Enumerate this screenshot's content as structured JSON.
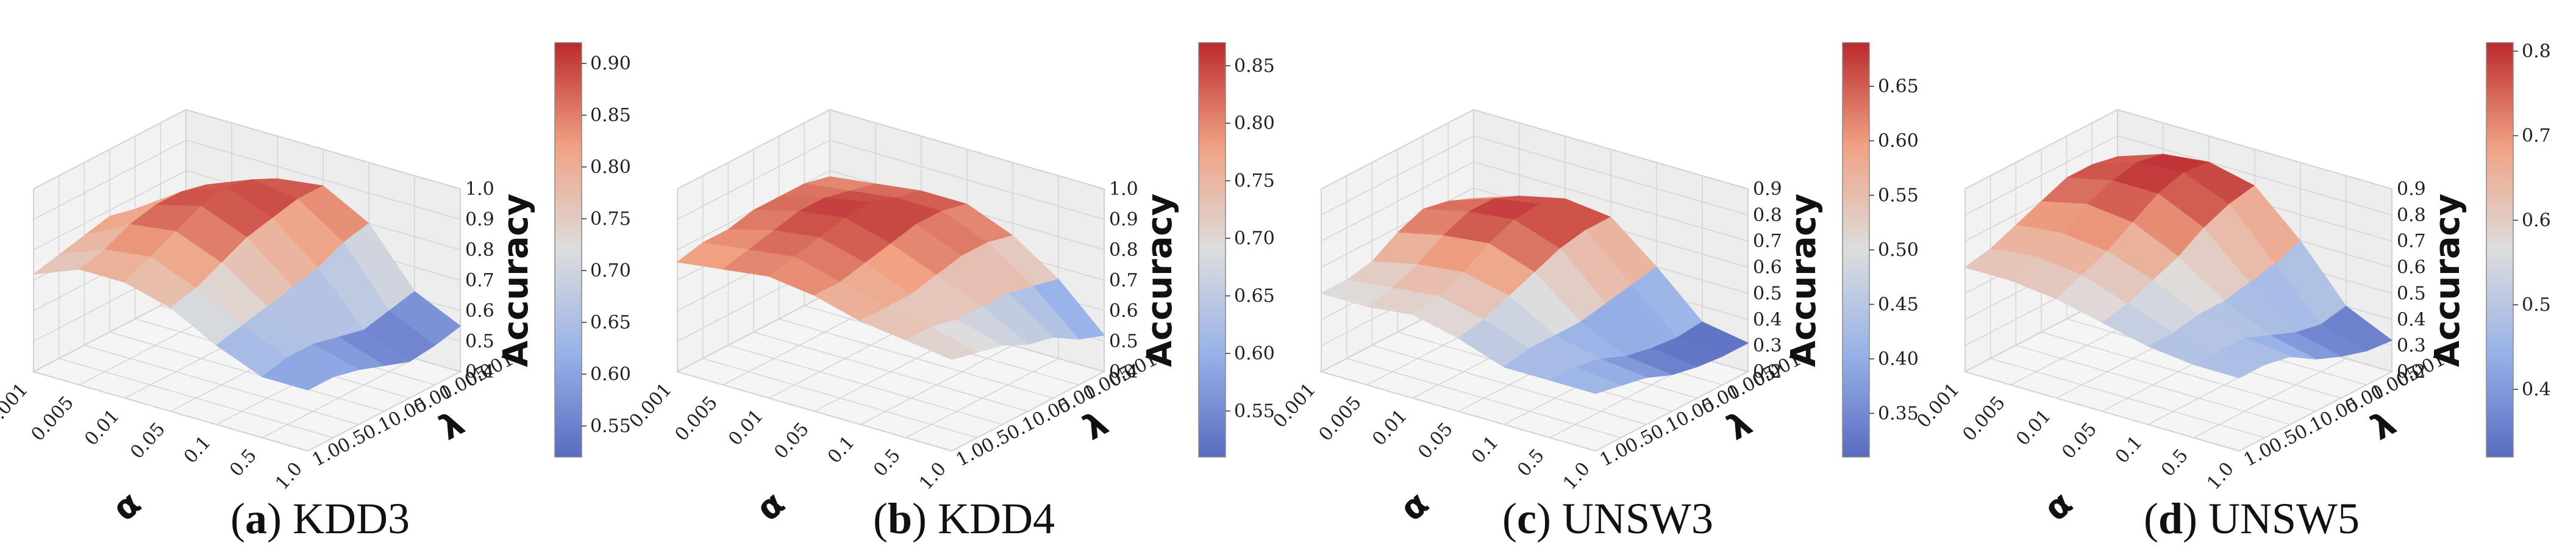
{
  "colormap": {
    "name": "coolwarm",
    "low": "#5a6bc0",
    "mid": "#dddddd",
    "high": "#bb2a2e"
  },
  "chart_data": [
    {
      "type": "surface3d",
      "caption_letter": "a",
      "caption_name": "KDD3",
      "xlabel": "α",
      "ylabel": "λ",
      "zlabel": "Accuracy",
      "x_ticks": [
        "0.001",
        "0.005",
        "0.01",
        "0.05",
        "0.1",
        "0.5",
        "1.0"
      ],
      "y_ticks": [
        "1.0",
        "0.5",
        "0.1",
        "0.05",
        "0.01",
        "0.005",
        "0.001"
      ],
      "z_ticks": [
        "0.4",
        "0.5",
        "0.6",
        "0.7",
        "0.8",
        "0.9",
        "1.0"
      ],
      "zlim": [
        0.4,
        1.0
      ],
      "colorbar_ticks": [
        "0.55",
        "0.60",
        "0.65",
        "0.70",
        "0.75",
        "0.80",
        "0.85",
        "0.90"
      ],
      "clim": [
        0.52,
        0.92
      ],
      "z": [
        [
          0.72,
          0.8,
          0.86,
          0.88,
          0.8,
          0.62,
          0.55
        ],
        [
          0.74,
          0.84,
          0.9,
          0.88,
          0.78,
          0.6,
          0.53
        ],
        [
          0.76,
          0.86,
          0.92,
          0.86,
          0.74,
          0.58,
          0.52
        ],
        [
          0.78,
          0.86,
          0.9,
          0.84,
          0.72,
          0.6,
          0.55
        ],
        [
          0.76,
          0.84,
          0.86,
          0.8,
          0.7,
          0.62,
          0.58
        ],
        [
          0.74,
          0.8,
          0.82,
          0.76,
          0.68,
          0.62,
          0.6
        ],
        [
          0.72,
          0.78,
          0.78,
          0.74,
          0.66,
          0.6,
          0.6
        ]
      ]
    },
    {
      "type": "surface3d",
      "caption_letter": "b",
      "caption_name": "KDD4",
      "xlabel": "α",
      "ylabel": "λ",
      "zlabel": "Accuracy",
      "x_ticks": [
        "0.001",
        "0.005",
        "0.01",
        "0.05",
        "0.1",
        "0.5",
        "1.0"
      ],
      "y_ticks": [
        "1.0",
        "0.5",
        "0.1",
        "0.05",
        "0.01",
        "0.005",
        "0.001"
      ],
      "z_ticks": [
        "0.4",
        "0.5",
        "0.6",
        "0.7",
        "0.8",
        "0.9",
        "1.0"
      ],
      "zlim": [
        0.4,
        1.0
      ],
      "colorbar_ticks": [
        "0.55",
        "0.60",
        "0.65",
        "0.70",
        "0.75",
        "0.80",
        "0.85"
      ],
      "clim": [
        0.51,
        0.87
      ],
      "z": [
        [
          0.78,
          0.8,
          0.82,
          0.82,
          0.76,
          0.66,
          0.52
        ],
        [
          0.8,
          0.82,
          0.84,
          0.84,
          0.78,
          0.68,
          0.55
        ],
        [
          0.8,
          0.84,
          0.87,
          0.84,
          0.78,
          0.7,
          0.6
        ],
        [
          0.8,
          0.84,
          0.86,
          0.82,
          0.76,
          0.7,
          0.62
        ],
        [
          0.78,
          0.82,
          0.84,
          0.8,
          0.74,
          0.7,
          0.66
        ],
        [
          0.78,
          0.8,
          0.82,
          0.78,
          0.74,
          0.72,
          0.68
        ],
        [
          0.76,
          0.78,
          0.8,
          0.78,
          0.74,
          0.72,
          0.7
        ]
      ]
    },
    {
      "type": "surface3d",
      "caption_letter": "c",
      "caption_name": "UNSW3",
      "xlabel": "α",
      "ylabel": "λ",
      "zlabel": "Accuracy",
      "x_ticks": [
        "0.001",
        "0.005",
        "0.01",
        "0.05",
        "0.1",
        "0.5",
        "1.0"
      ],
      "y_ticks": [
        "1.0",
        "0.5",
        "0.1",
        "0.05",
        "0.01",
        "0.005",
        "0.001"
      ],
      "z_ticks": [
        "0.2",
        "0.3",
        "0.4",
        "0.5",
        "0.6",
        "0.7",
        "0.8",
        "0.9"
      ],
      "zlim": [
        0.2,
        0.9
      ],
      "colorbar_ticks": [
        "0.35",
        "0.40",
        "0.45",
        "0.50",
        "0.55",
        "0.60",
        "0.65"
      ],
      "clim": [
        0.31,
        0.69
      ],
      "z": [
        [
          0.56,
          0.62,
          0.66,
          0.64,
          0.5,
          0.34,
          0.31
        ],
        [
          0.6,
          0.66,
          0.69,
          0.64,
          0.48,
          0.33,
          0.31
        ],
        [
          0.62,
          0.66,
          0.68,
          0.62,
          0.46,
          0.34,
          0.32
        ],
        [
          0.58,
          0.62,
          0.64,
          0.58,
          0.44,
          0.36,
          0.34
        ],
        [
          0.52,
          0.56,
          0.58,
          0.54,
          0.44,
          0.4,
          0.38
        ],
        [
          0.5,
          0.52,
          0.54,
          0.5,
          0.44,
          0.42,
          0.4
        ],
        [
          0.5,
          0.5,
          0.52,
          0.48,
          0.42,
          0.42,
          0.42
        ]
      ]
    },
    {
      "type": "surface3d",
      "caption_letter": "d",
      "caption_name": "UNSW5",
      "xlabel": "α",
      "ylabel": "λ",
      "zlabel": "Accuracy",
      "x_ticks": [
        "0.001",
        "0.005",
        "0.01",
        "0.05",
        "0.1",
        "0.5",
        "1.0"
      ],
      "y_ticks": [
        "1.0",
        "0.5",
        "0.1",
        "0.05",
        "0.01",
        "0.005",
        "0.001"
      ],
      "z_ticks": [
        "0.2",
        "0.3",
        "0.4",
        "0.5",
        "0.6",
        "0.7",
        "0.8",
        "0.9"
      ],
      "zlim": [
        0.2,
        0.9
      ],
      "colorbar_ticks": [
        "0.4",
        "0.5",
        "0.6",
        "0.7",
        "0.8"
      ],
      "clim": [
        0.32,
        0.81
      ],
      "z": [
        [
          0.72,
          0.78,
          0.8,
          0.76,
          0.6,
          0.4,
          0.32
        ],
        [
          0.74,
          0.8,
          0.81,
          0.74,
          0.56,
          0.38,
          0.33
        ],
        [
          0.74,
          0.78,
          0.78,
          0.7,
          0.54,
          0.4,
          0.36
        ],
        [
          0.7,
          0.74,
          0.72,
          0.64,
          0.52,
          0.44,
          0.4
        ],
        [
          0.66,
          0.68,
          0.66,
          0.6,
          0.52,
          0.48,
          0.46
        ],
        [
          0.62,
          0.64,
          0.62,
          0.56,
          0.5,
          0.48,
          0.48
        ],
        [
          0.6,
          0.6,
          0.58,
          0.54,
          0.5,
          0.48,
          0.48
        ]
      ]
    }
  ]
}
